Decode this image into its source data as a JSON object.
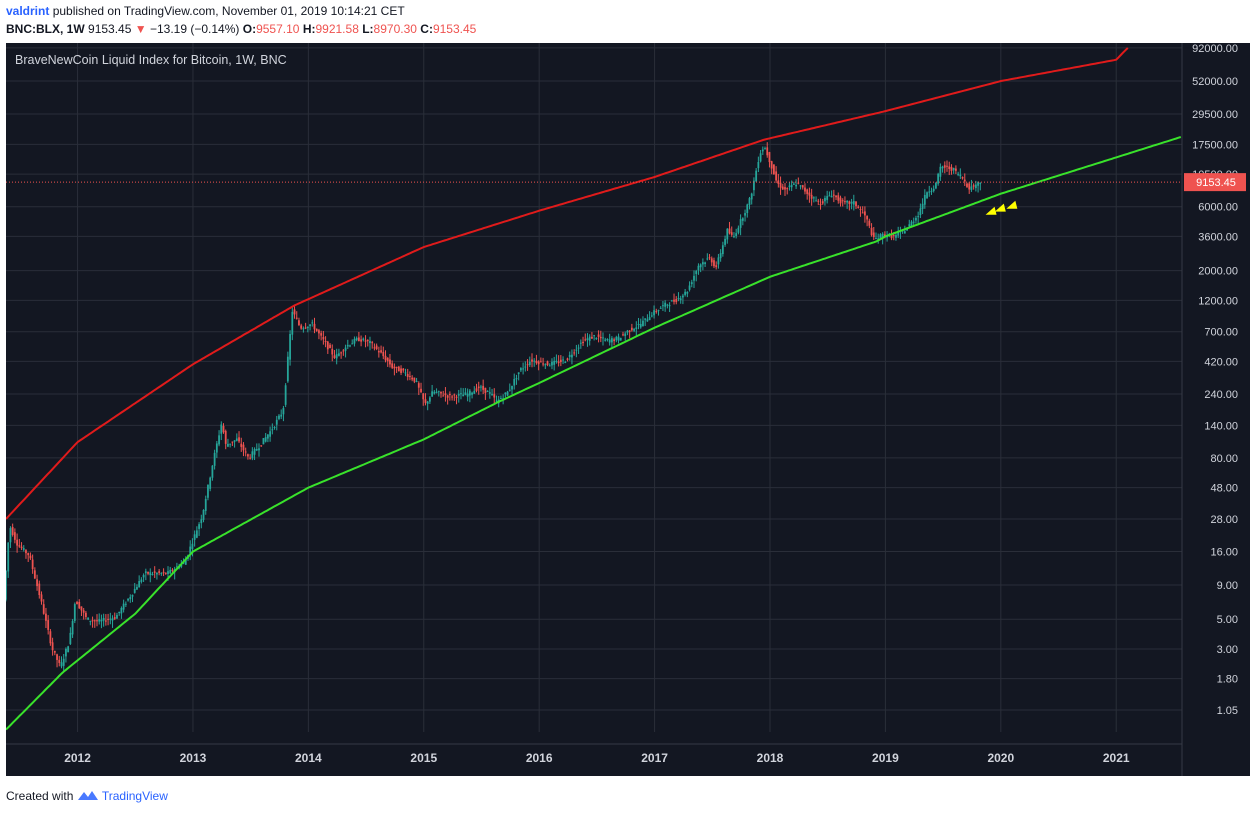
{
  "header": {
    "user": "valdrint",
    "published_text": "published on TradingView.com, November 01, 2019 10:14:21 CET",
    "symbol": "BNC:BLX, 1W",
    "last": "9153.45",
    "change": "−13.19 (−0.14%)",
    "open_label": "O:",
    "open": "9557.10",
    "high_label": "H:",
    "high": "9921.58",
    "low_label": "L:",
    "low": "8970.30",
    "close_label": "C:",
    "close": "9153.45"
  },
  "footer": {
    "created_with": "Created with",
    "brand": "TradingView"
  },
  "colors": {
    "background": "#131722",
    "grid": "#2a2e39",
    "up": "#26a69a",
    "down": "#ef5350",
    "upper_band": "#e01b1b",
    "lower_band": "#39e22b",
    "price_line": "#ef5350",
    "arrow": "#ffff00",
    "axis_text": "#d1d4dc"
  },
  "chart_data": {
    "type": "candlestick",
    "title": "BraveNewCoin Liquid Index for Bitcoin, 1W, BNC",
    "y_scale": "log",
    "ylim": [
      0.72,
      100000
    ],
    "xlim": [
      2011.38,
      2021.57
    ],
    "grid": true,
    "y_ticks": [
      "92000.00",
      "52000.00",
      "29500.00",
      "17500.00",
      "10500.00",
      "6000.00",
      "3600.00",
      "2000.00",
      "1200.00",
      "700.00",
      "420.00",
      "240.00",
      "140.00",
      "80.00",
      "48.00",
      "28.00",
      "16.00",
      "9.00",
      "5.00",
      "3.00",
      "1.80",
      "1.05"
    ],
    "x_ticks": [
      "2012",
      "2013",
      "2014",
      "2015",
      "2016",
      "2017",
      "2018",
      "2019",
      "2020",
      "2021"
    ],
    "last_price_label": "9153.45",
    "last_price": 9153.45,
    "price_path": [
      [
        2011.38,
        7
      ],
      [
        2011.43,
        25
      ],
      [
        2011.5,
        18
      ],
      [
        2011.6,
        15
      ],
      [
        2011.7,
        7
      ],
      [
        2011.8,
        3
      ],
      [
        2011.87,
        2.2
      ],
      [
        2011.95,
        3.5
      ],
      [
        2012.0,
        7
      ],
      [
        2012.1,
        5
      ],
      [
        2012.2,
        4.8
      ],
      [
        2012.35,
        5.2
      ],
      [
        2012.5,
        8
      ],
      [
        2012.6,
        11
      ],
      [
        2012.7,
        11
      ],
      [
        2012.8,
        11
      ],
      [
        2012.95,
        13.5
      ],
      [
        2013.1,
        30
      ],
      [
        2013.2,
        80
      ],
      [
        2013.27,
        150
      ],
      [
        2013.3,
        100
      ],
      [
        2013.4,
        110
      ],
      [
        2013.5,
        80
      ],
      [
        2013.6,
        100
      ],
      [
        2013.7,
        130
      ],
      [
        2013.8,
        180
      ],
      [
        2013.88,
        1000
      ],
      [
        2013.95,
        750
      ],
      [
        2014.05,
        800
      ],
      [
        2014.15,
        600
      ],
      [
        2014.25,
        450
      ],
      [
        2014.35,
        550
      ],
      [
        2014.45,
        620
      ],
      [
        2014.55,
        580
      ],
      [
        2014.65,
        480
      ],
      [
        2014.75,
        380
      ],
      [
        2014.85,
        350
      ],
      [
        2014.95,
        300
      ],
      [
        2015.03,
        200
      ],
      [
        2015.1,
        250
      ],
      [
        2015.25,
        230
      ],
      [
        2015.4,
        240
      ],
      [
        2015.5,
        270
      ],
      [
        2015.6,
        240
      ],
      [
        2015.65,
        210
      ],
      [
        2015.75,
        250
      ],
      [
        2015.85,
        360
      ],
      [
        2015.95,
        430
      ],
      [
        2016.1,
        400
      ],
      [
        2016.25,
        430
      ],
      [
        2016.4,
        600
      ],
      [
        2016.5,
        650
      ],
      [
        2016.6,
        600
      ],
      [
        2016.7,
        620
      ],
      [
        2016.8,
        720
      ],
      [
        2016.9,
        800
      ],
      [
        2017.0,
        960
      ],
      [
        2017.1,
        1100
      ],
      [
        2017.2,
        1200
      ],
      [
        2017.3,
        1400
      ],
      [
        2017.4,
        2200
      ],
      [
        2017.5,
        2500
      ],
      [
        2017.55,
        2100
      ],
      [
        2017.65,
        4000
      ],
      [
        2017.7,
        3500
      ],
      [
        2017.8,
        5500
      ],
      [
        2017.85,
        7000
      ],
      [
        2017.93,
        15000
      ],
      [
        2017.97,
        17000
      ],
      [
        2018.02,
        13000
      ],
      [
        2018.08,
        9000
      ],
      [
        2018.15,
        8000
      ],
      [
        2018.25,
        9000
      ],
      [
        2018.35,
        7500
      ],
      [
        2018.45,
        6300
      ],
      [
        2018.55,
        7500
      ],
      [
        2018.65,
        6400
      ],
      [
        2018.75,
        6400
      ],
      [
        2018.85,
        5000
      ],
      [
        2018.92,
        3400
      ],
      [
        2019.0,
        3700
      ],
      [
        2019.1,
        3600
      ],
      [
        2019.2,
        4100
      ],
      [
        2019.3,
        5200
      ],
      [
        2019.38,
        7800
      ],
      [
        2019.45,
        8500
      ],
      [
        2019.5,
        12000
      ],
      [
        2019.6,
        11500
      ],
      [
        2019.68,
        10000
      ],
      [
        2019.75,
        8200
      ],
      [
        2019.8,
        8800
      ],
      [
        2019.84,
        9150
      ]
    ],
    "upper_band_points": [
      [
        2011.38,
        28
      ],
      [
        2012.0,
        105
      ],
      [
        2013.0,
        400
      ],
      [
        2013.88,
        1100
      ],
      [
        2015.0,
        3000
      ],
      [
        2016.0,
        5600
      ],
      [
        2017.0,
        10000
      ],
      [
        2017.95,
        19000
      ],
      [
        2019.0,
        31000
      ],
      [
        2020.0,
        52000
      ],
      [
        2021.0,
        75000
      ],
      [
        2021.1,
        92000
      ]
    ],
    "lower_band_points": [
      [
        2011.38,
        0.75
      ],
      [
        2011.87,
        2.0
      ],
      [
        2012.5,
        5.5
      ],
      [
        2013.0,
        16
      ],
      [
        2014.0,
        48
      ],
      [
        2015.0,
        110
      ],
      [
        2015.65,
        210
      ],
      [
        2016.0,
        290
      ],
      [
        2017.0,
        750
      ],
      [
        2018.0,
        1800
      ],
      [
        2018.92,
        3300
      ],
      [
        2019.0,
        3600
      ],
      [
        2020.0,
        7500
      ],
      [
        2021.0,
        14000
      ],
      [
        2021.57,
        20000
      ]
    ],
    "annotations": [
      {
        "type": "arrows",
        "x": [
          2019.92,
          2020.0,
          2020.1
        ],
        "y": [
          5500,
          5800,
          6100
        ]
      }
    ]
  }
}
